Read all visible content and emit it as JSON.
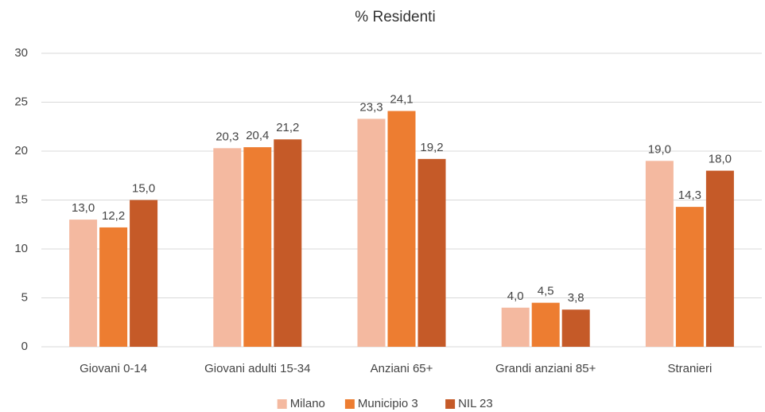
{
  "chart_data": {
    "type": "bar",
    "title": "% Residenti",
    "categories": [
      "Giovani 0-14",
      "Giovani adulti 15-34",
      "Anziani 65+",
      "Grandi anziani 85+",
      "Stranieri"
    ],
    "series": [
      {
        "name": "Milano",
        "color": "#f4b9a0",
        "values": [
          13.0,
          20.3,
          23.3,
          4.0,
          19.0
        ],
        "value_labels": [
          "13,0",
          "20,3",
          "23,3",
          "4,0",
          "19,0"
        ]
      },
      {
        "name": "Municipio 3",
        "color": "#ed7d31",
        "values": [
          12.2,
          20.4,
          24.1,
          4.5,
          14.3
        ],
        "value_labels": [
          "12,2",
          "20,4",
          "24,1",
          "4,5",
          "14,3"
        ]
      },
      {
        "name": "NIL 23",
        "color": "#c55a28",
        "values": [
          15.0,
          21.2,
          19.2,
          3.8,
          18.0
        ],
        "value_labels": [
          "15,0",
          "21,2",
          "19,2",
          "3,8",
          "18,0"
        ]
      }
    ],
    "ylim": [
      0,
      30
    ],
    "yticks": [
      0,
      5,
      10,
      15,
      20,
      25,
      30
    ],
    "grid": true,
    "legend": "bottom"
  }
}
